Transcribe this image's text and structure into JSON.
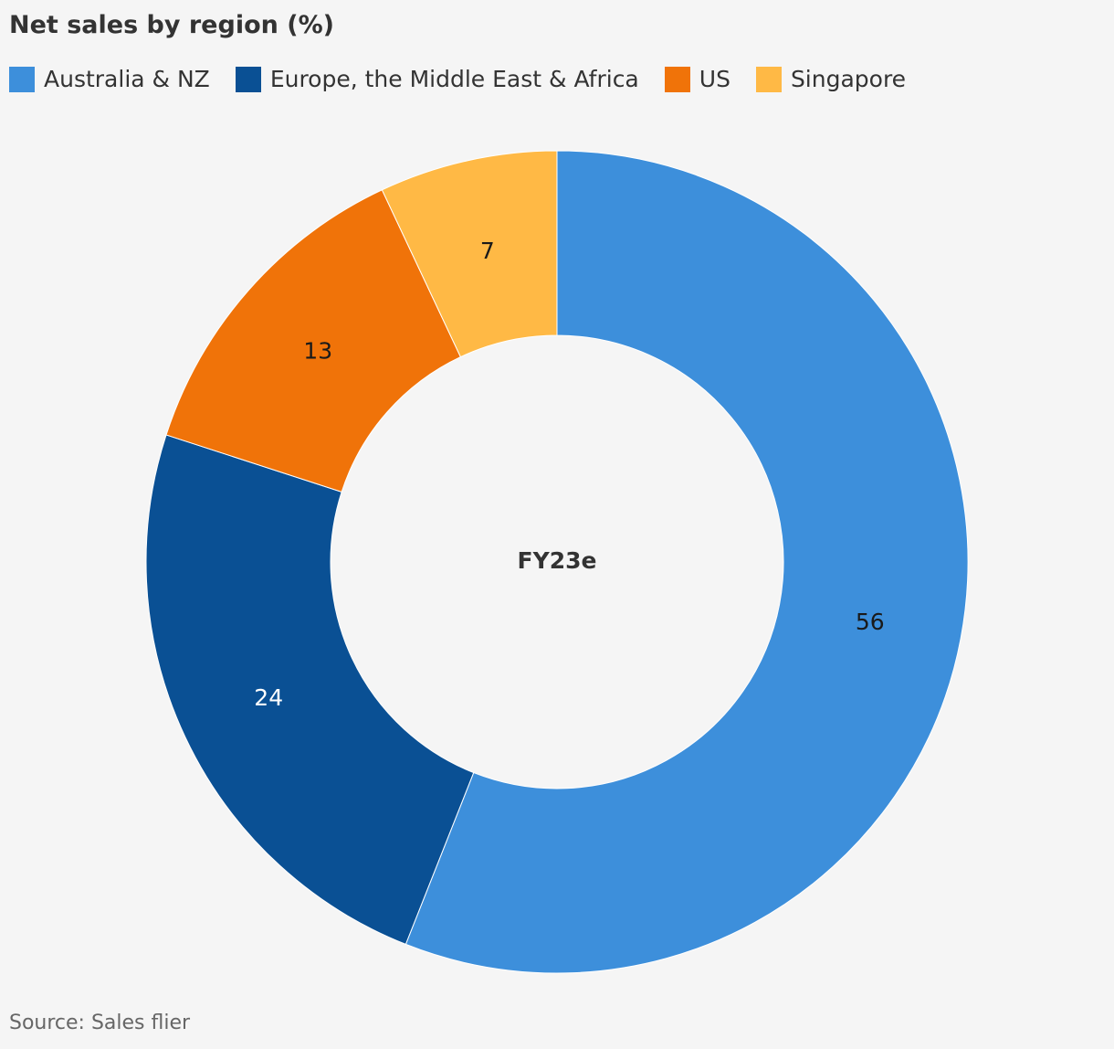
{
  "chart_data": {
    "type": "pie",
    "variant": "donut",
    "title": "Net sales by region (%)",
    "center_label": "FY23e",
    "source": "Source: Sales flier",
    "legend_position": "top-left",
    "slices": [
      {
        "name": "Australia & NZ",
        "value": 56,
        "color": "#3d8fdb",
        "label_color": "#1a1a1a"
      },
      {
        "name": "Europe, the Middle East & Africa",
        "value": 24,
        "color": "#0a5094",
        "label_color": "#ffffff"
      },
      {
        "name": "US",
        "value": 13,
        "color": "#f07309",
        "label_color": "#1a1a1a"
      },
      {
        "name": "Singapore",
        "value": 7,
        "color": "#ffb945",
        "label_color": "#1a1a1a"
      }
    ]
  }
}
